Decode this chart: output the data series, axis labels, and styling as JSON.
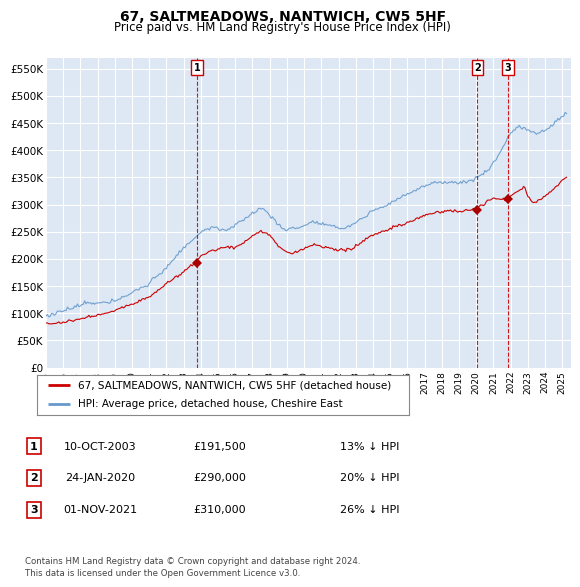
{
  "title": "67, SALTMEADOWS, NANTWICH, CW5 5HF",
  "subtitle": "Price paid vs. HM Land Registry's House Price Index (HPI)",
  "ylabel_ticks": [
    "£0",
    "£50K",
    "£100K",
    "£150K",
    "£200K",
    "£250K",
    "£300K",
    "£350K",
    "£400K",
    "£450K",
    "£500K",
    "£550K"
  ],
  "ytick_values": [
    0,
    50000,
    100000,
    150000,
    200000,
    250000,
    300000,
    350000,
    400000,
    450000,
    500000,
    550000
  ],
  "ylim": [
    0,
    570000
  ],
  "background_color": "#ffffff",
  "plot_bg_color": "#dde8f4",
  "grid_color": "#ffffff",
  "hpi_line_color": "#6699cc",
  "price_line_color": "#cc0000",
  "sale_marker_color": "#aa0000",
  "dashed_line_color": "#cc0000",
  "legend_entry1": "67, SALTMEADOWS, NANTWICH, CW5 5HF (detached house)",
  "legend_entry2": "HPI: Average price, detached house, Cheshire East",
  "transactions": [
    {
      "id": 1,
      "date_num": 2003.78,
      "price": 191500,
      "label": "1"
    },
    {
      "id": 2,
      "date_num": 2020.07,
      "price": 290000,
      "label": "2"
    },
    {
      "id": 3,
      "date_num": 2021.83,
      "price": 310000,
      "label": "3"
    }
  ],
  "table_rows": [
    {
      "num": "1",
      "date": "10-OCT-2003",
      "price": "£191,500",
      "pct": "13% ↓ HPI"
    },
    {
      "num": "2",
      "date": "24-JAN-2020",
      "price": "£290,000",
      "pct": "20% ↓ HPI"
    },
    {
      "num": "3",
      "date": "01-NOV-2021",
      "price": "£310,000",
      "pct": "26% ↓ HPI"
    }
  ],
  "footer": "Contains HM Land Registry data © Crown copyright and database right 2024.\nThis data is licensed under the Open Government Licence v3.0.",
  "xlim_start": 1995.0,
  "xlim_end": 2025.5,
  "xtick_years": [
    1995,
    1996,
    1997,
    1998,
    1999,
    2000,
    2001,
    2002,
    2003,
    2004,
    2005,
    2006,
    2007,
    2008,
    2009,
    2010,
    2011,
    2012,
    2013,
    2014,
    2015,
    2016,
    2017,
    2018,
    2019,
    2020,
    2021,
    2022,
    2023,
    2024,
    2025
  ]
}
